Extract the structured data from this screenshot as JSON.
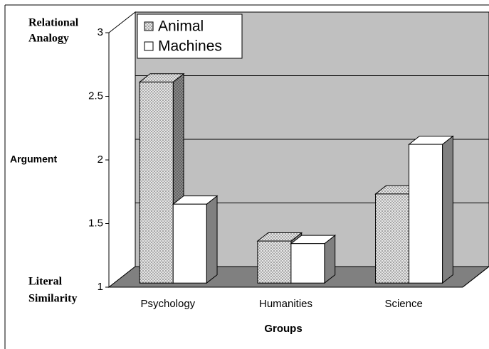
{
  "chart_data": {
    "type": "bar3d",
    "x_label": "Groups",
    "y_annotations": [
      [
        "Relational",
        "Analogy"
      ],
      [
        "Argument"
      ],
      [
        "Literal",
        "Similarity"
      ]
    ],
    "categories": [
      "Psychology",
      "Humanities",
      "Science"
    ],
    "series": [
      {
        "name": "Animal",
        "color": "#e0e0e0",
        "pattern": "dotted",
        "values": [
          2.58,
          1.33,
          1.7
        ]
      },
      {
        "name": "Machines",
        "color": "#ffffff",
        "values": [
          1.62,
          1.31,
          2.09
        ]
      }
    ],
    "ylim": [
      1,
      3
    ],
    "yticks": [
      1,
      1.5,
      2,
      2.5,
      3
    ],
    "grid": true,
    "legend": "top-left"
  }
}
